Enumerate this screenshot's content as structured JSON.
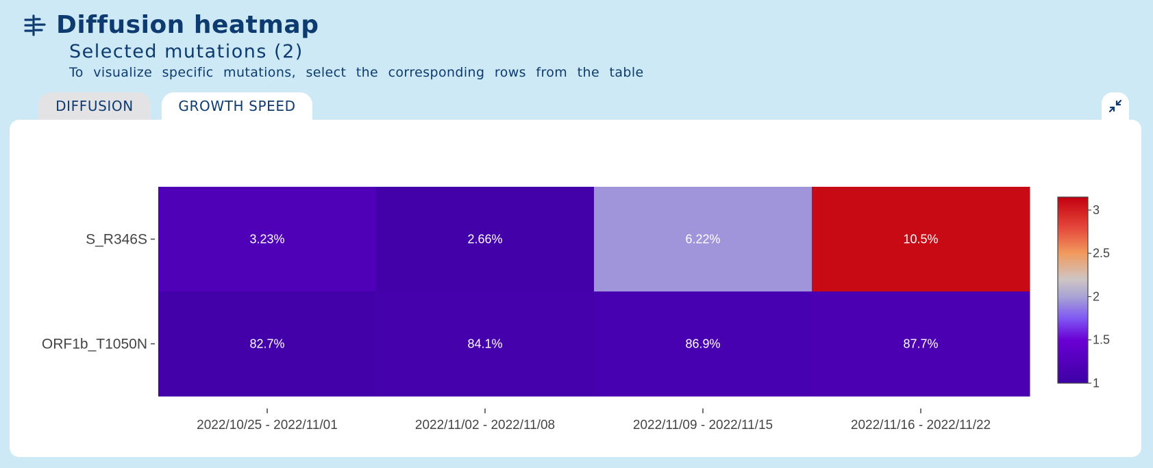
{
  "header": {
    "title": "Diffusion heatmap",
    "icon": "heatmap-filter-icon",
    "subtitle": "Selected mutations (2)",
    "hint": "To visualize specific mutations, select the corresponding rows from the table"
  },
  "tabs": [
    {
      "label": "DIFFUSION",
      "active": false
    },
    {
      "label": "GROWTH SPEED",
      "active": true
    }
  ],
  "collapse_icon": "collapse-arrows-icon",
  "chart_data": {
    "type": "heatmap",
    "rows": [
      "S_R346S",
      "ORF1b_T1050N"
    ],
    "columns": [
      "2022/10/25 - 2022/11/01",
      "2022/11/02 - 2022/11/08",
      "2022/11/09 - 2022/11/15",
      "2022/11/16 - 2022/11/22"
    ],
    "values": [
      [
        1.2,
        1.05,
        1.95,
        3.1
      ],
      [
        1.05,
        1.08,
        1.12,
        1.15
      ]
    ],
    "cell_labels": [
      [
        "3.23%",
        "2.66%",
        "6.22%",
        "10.5%"
      ],
      [
        "82.7%",
        "84.1%",
        "86.9%",
        "87.7%"
      ]
    ],
    "colorscale": {
      "min": 1,
      "max": 3.15,
      "stops": [
        {
          "value": 1,
          "color": "#3d01a4"
        },
        {
          "value": 1.5,
          "color": "#6a00d4"
        },
        {
          "value": 1.75,
          "color": "#7f58f3"
        },
        {
          "value": 2,
          "color": "#a8a4d4"
        },
        {
          "value": 2.2,
          "color": "#cfc4c4"
        },
        {
          "value": 2.5,
          "color": "#f19a5e"
        },
        {
          "value": 2.8,
          "color": "#e5473b"
        },
        {
          "value": 3.15,
          "color": "#c3000f"
        }
      ],
      "ticks": [
        1,
        1.5,
        2,
        2.5,
        3
      ],
      "tick_labels": [
        "1",
        "1.5",
        "2",
        "2.5",
        "3"
      ]
    },
    "colorbar": "right"
  }
}
